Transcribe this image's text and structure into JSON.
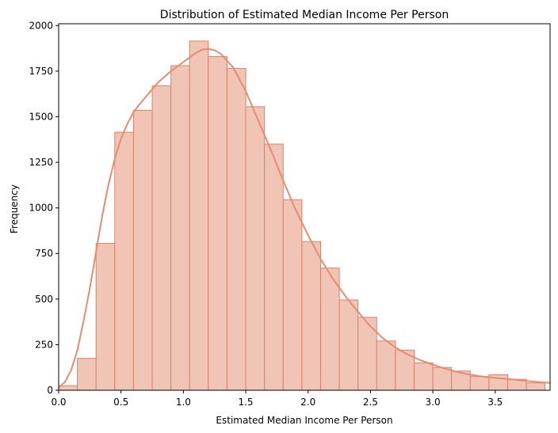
{
  "chart_data": {
    "type": "bar",
    "title": "Distribution of Estimated Median Income Per Person",
    "xlabel": "Estimated Median Income Per Person",
    "ylabel": "Frequency",
    "xlim": [
      0,
      3.94
    ],
    "ylim": [
      0,
      2010
    ],
    "xticks": [
      "0.0",
      "0.5",
      "1.0",
      "1.5",
      "2.0",
      "2.5",
      "3.0",
      "3.5"
    ],
    "yticks": [
      "0",
      "250",
      "500",
      "750",
      "1000",
      "1250",
      "1500",
      "1750",
      "2000"
    ],
    "grid": false,
    "bin_width": 0.15,
    "bin_starts": [
      0.0,
      0.15,
      0.3,
      0.45,
      0.6,
      0.75,
      0.9,
      1.05,
      1.2,
      1.35,
      1.5,
      1.65,
      1.8,
      1.95,
      2.1,
      2.25,
      2.4,
      2.55,
      2.7,
      2.85,
      3.0,
      3.15,
      3.3,
      3.45,
      3.6,
      3.75
    ],
    "values": [
      25,
      175,
      805,
      1415,
      1535,
      1670,
      1780,
      1915,
      1830,
      1765,
      1555,
      1350,
      1045,
      815,
      670,
      495,
      400,
      270,
      220,
      150,
      125,
      105,
      75,
      85,
      60,
      40
    ],
    "kde": {
      "x": [
        0.0,
        0.05,
        0.1,
        0.15,
        0.2,
        0.25,
        0.3,
        0.35,
        0.4,
        0.45,
        0.5,
        0.55,
        0.6,
        0.65,
        0.7,
        0.75,
        0.8,
        0.9,
        1.0,
        1.1,
        1.15,
        1.2,
        1.25,
        1.3,
        1.4,
        1.5,
        1.6,
        1.7,
        1.8,
        1.9,
        2.0,
        2.1,
        2.2,
        2.3,
        2.4,
        2.5,
        2.6,
        2.7,
        2.8,
        2.9,
        3.0,
        3.1,
        3.2,
        3.3,
        3.4,
        3.5,
        3.6,
        3.7,
        3.8,
        3.94
      ],
      "y": [
        15,
        45,
        110,
        220,
        380,
        560,
        760,
        960,
        1130,
        1270,
        1380,
        1460,
        1525,
        1570,
        1610,
        1650,
        1690,
        1750,
        1800,
        1850,
        1868,
        1872,
        1865,
        1845,
        1770,
        1640,
        1480,
        1320,
        1150,
        990,
        850,
        720,
        610,
        515,
        430,
        350,
        285,
        235,
        195,
        165,
        140,
        118,
        100,
        85,
        75,
        68,
        62,
        55,
        48,
        40
      ]
    },
    "colors": {
      "bar_fill": "#f0c5b6",
      "bar_edge": "#e07f66",
      "kde_line": "#e58c73"
    }
  }
}
